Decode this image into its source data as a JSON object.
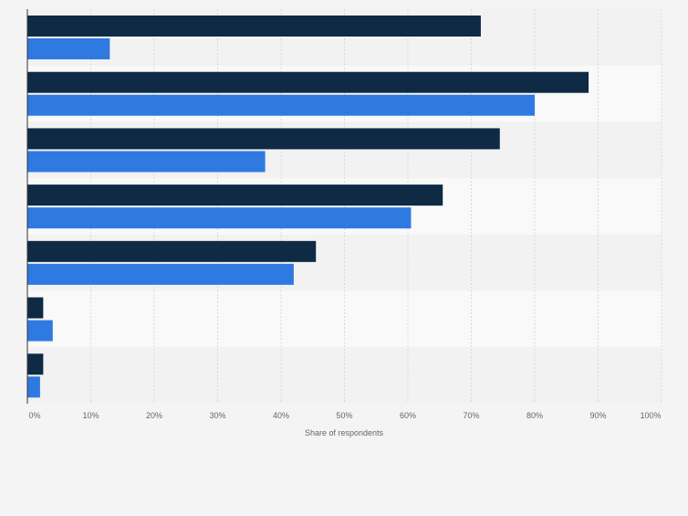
{
  "chart_data": {
    "type": "bar",
    "orientation": "horizontal",
    "categories": [
      "",
      "",
      "",
      "",
      "",
      "",
      ""
    ],
    "series": [
      {
        "values": [
          71.5,
          88.5,
          74.5,
          65.5,
          45.5,
          2.5,
          2.5
        ]
      },
      {
        "values": [
          13.0,
          80.0,
          37.5,
          60.5,
          42.0,
          4.0,
          2.0
        ]
      }
    ],
    "xlabel": "Share of respondents",
    "ylabel": "",
    "xlim": [
      0,
      100
    ],
    "xticks": [
      "0%",
      "10%",
      "20%",
      "30%",
      "40%",
      "50%",
      "60%",
      "70%",
      "80%",
      "90%",
      "100%"
    ],
    "grid": true,
    "colors": {
      "series": [
        "#0f2a44",
        "#2f7ae0"
      ],
      "grid": "#d9d9d9",
      "band_light": "#f9f9f9",
      "band_dark": "#f2f2f2"
    }
  }
}
